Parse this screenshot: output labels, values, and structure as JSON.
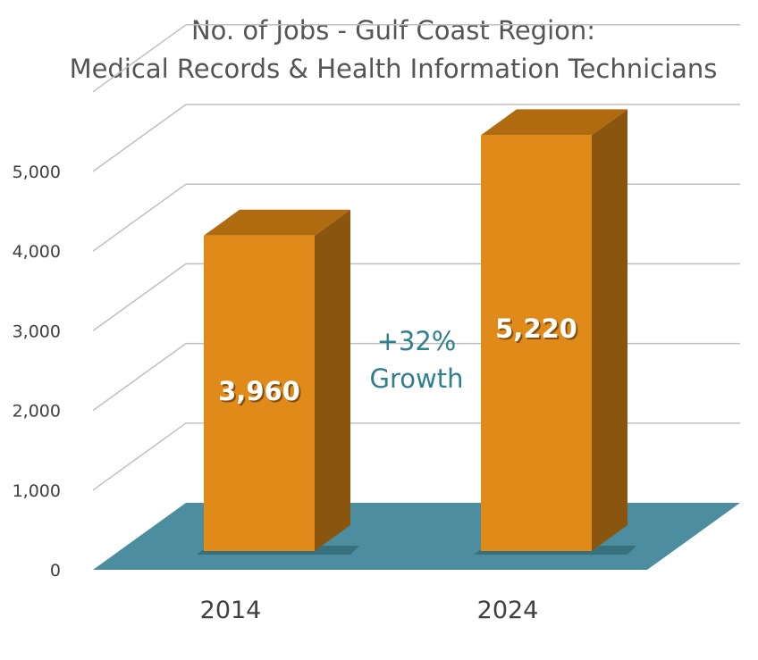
{
  "chart_data": {
    "type": "bar",
    "title": "No. of Jobs - Gulf Coast Region:",
    "subtitle": "Medical Records & Health Information Technicians",
    "categories": [
      "2014",
      "2024"
    ],
    "values": [
      3960,
      5220
    ],
    "data_labels": [
      "3,960",
      "5,220"
    ],
    "ylim": [
      0,
      6000
    ],
    "yticks": [
      "0",
      "1,000",
      "2,000",
      "3,000",
      "4,000",
      "5,000"
    ],
    "grid": true,
    "three_d": true,
    "annotation": {
      "line1": "+32%",
      "line2": "Growth"
    },
    "colors": {
      "bar_front": "#e08a1a",
      "bar_side": "#8a560f",
      "bar_top": "#b06a10",
      "floor": "#4c8ea0",
      "grid": "#bfbfbf",
      "annotation": "#2f7f8e"
    }
  }
}
